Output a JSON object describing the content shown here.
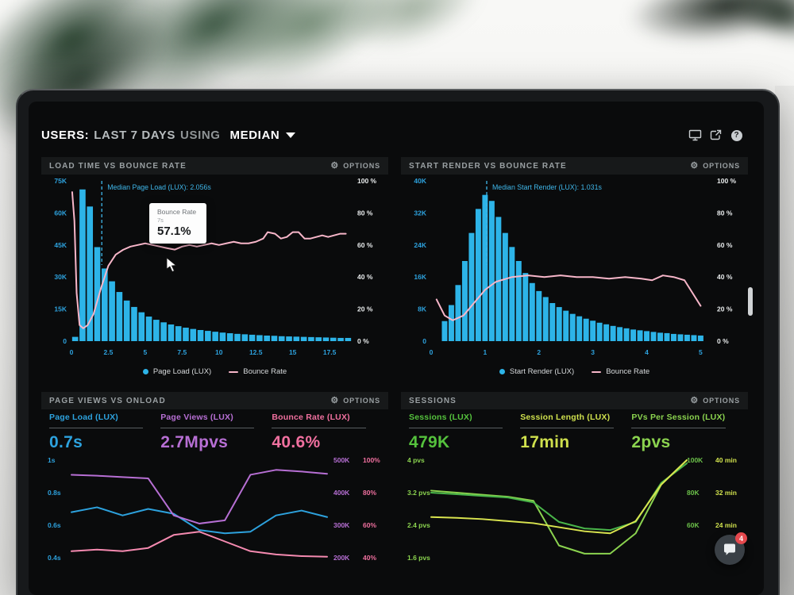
{
  "header": {
    "title_prefix": "USERS:",
    "title_range": "LAST 7 DAYS",
    "title_using": "USING",
    "title_metric": "MEDIAN"
  },
  "icons": {
    "gear": "⚙",
    "help": "?"
  },
  "colors": {
    "cyan": "#2db4e8",
    "pink": "#f7b6c9",
    "blue": "#2da2de",
    "purple": "#b76fd4",
    "rose": "#f0709f",
    "green": "#55c23d",
    "lime": "#cfe04d",
    "light_green": "#8bd34f",
    "axis_text": "#e8ebec",
    "annotation": "#3fb7ea"
  },
  "panels": {
    "p1": {
      "title": "LOAD TIME VS BOUNCE RATE",
      "options_label": "OPTIONS",
      "tooltip": {
        "title": "Bounce Rate",
        "sub": "7s",
        "value": "57.1%"
      },
      "legend": [
        {
          "label": "Page Load (LUX)"
        },
        {
          "label": "Bounce Rate"
        }
      ]
    },
    "p2": {
      "title": "START RENDER VS BOUNCE RATE",
      "options_label": "OPTIONS",
      "legend": [
        {
          "label": "Start Render (LUX)"
        },
        {
          "label": "Bounce Rate"
        }
      ]
    },
    "p3": {
      "title": "PAGE VIEWS VS ONLOAD",
      "options_label": "OPTIONS",
      "metrics": [
        {
          "label": "Page Load (LUX)",
          "value": "0.7s"
        },
        {
          "label": "Page Views (LUX)",
          "value": "2.7Mpvs"
        },
        {
          "label": "Bounce Rate (LUX)",
          "value": "40.6%"
        }
      ]
    },
    "p4": {
      "title": "SESSIONS",
      "options_label": "OPTIONS",
      "metrics": [
        {
          "label": "Sessions (LUX)",
          "value": "479K"
        },
        {
          "label": "Session Length (LUX)",
          "value": "17min"
        },
        {
          "label": "PVs Per Session (LUX)",
          "value": "2pvs"
        }
      ]
    }
  },
  "chat": {
    "badge": "4"
  },
  "chart_data": [
    {
      "type": "bar",
      "title": "LOAD TIME VS BOUNCE RATE",
      "x_domain": [
        0,
        19
      ],
      "x_ticks": {
        "values": [
          0,
          2.5,
          5,
          7.5,
          10,
          12.5,
          15,
          17.5
        ],
        "labels": [
          "0",
          "2.5",
          "5",
          "7.5",
          "10",
          "12.5",
          "15",
          "17.5"
        ]
      },
      "left_axis": {
        "max": 75000,
        "ticks": [
          "75K",
          "60K",
          "45K",
          "30K",
          "15K",
          "0"
        ],
        "color": "#2da2de"
      },
      "right_axis": {
        "ticks": [
          "100 %",
          "80 %",
          "60 %",
          "40 %",
          "20 %",
          "0 %"
        ],
        "color": "#e8ebec"
      },
      "bars": {
        "name": "Page Load (LUX)",
        "color": "#2db4e8",
        "x0": 0.25,
        "step": 0.5,
        "ymax": 75,
        "values": [
          2,
          71,
          63,
          44,
          34,
          28,
          23,
          19,
          16,
          13.5,
          11.5,
          10,
          8.8,
          7.8,
          7,
          6.3,
          5.7,
          5.2,
          4.8,
          4.4,
          4.0,
          3.7,
          3.4,
          3.2,
          3.0,
          2.8,
          2.6,
          2.5,
          2.3,
          2.2,
          2.1,
          2.0,
          1.9,
          1.8,
          1.7,
          1.6,
          1.5,
          1.5
        ]
      },
      "line": {
        "name": "Bounce Rate",
        "color": "#f7b6c9",
        "points": [
          [
            0.05,
            93
          ],
          [
            0.2,
            75
          ],
          [
            0.35,
            30
          ],
          [
            0.55,
            10
          ],
          [
            0.8,
            8
          ],
          [
            1.1,
            10
          ],
          [
            1.5,
            17
          ],
          [
            2.0,
            33
          ],
          [
            2.5,
            47
          ],
          [
            3.0,
            54
          ],
          [
            3.5,
            57
          ],
          [
            4.0,
            59
          ],
          [
            4.5,
            60
          ],
          [
            5.0,
            61
          ],
          [
            5.5,
            60
          ],
          [
            6.0,
            59
          ],
          [
            6.5,
            58
          ],
          [
            7.0,
            57.1
          ],
          [
            7.5,
            59
          ],
          [
            8.0,
            60
          ],
          [
            8.5,
            59
          ],
          [
            9.0,
            60
          ],
          [
            9.5,
            61
          ],
          [
            10.0,
            60
          ],
          [
            10.5,
            61
          ],
          [
            11.0,
            62
          ],
          [
            11.5,
            61
          ],
          [
            12.0,
            61
          ],
          [
            12.5,
            62
          ],
          [
            13.0,
            64
          ],
          [
            13.3,
            68
          ],
          [
            13.8,
            67
          ],
          [
            14.2,
            64
          ],
          [
            14.6,
            65
          ],
          [
            15.0,
            68
          ],
          [
            15.4,
            68
          ],
          [
            15.8,
            64
          ],
          [
            16.2,
            64
          ],
          [
            16.6,
            65
          ],
          [
            17.0,
            66
          ],
          [
            17.4,
            65
          ],
          [
            17.8,
            66
          ],
          [
            18.2,
            67
          ],
          [
            18.6,
            67
          ]
        ]
      },
      "median": {
        "x": 2.056,
        "label": "Median Page Load (LUX): 2.056s",
        "color": "#3fb7ea"
      }
    },
    {
      "type": "bar",
      "title": "START RENDER VS BOUNCE RATE",
      "x_domain": [
        0,
        5.2
      ],
      "x_ticks": {
        "values": [
          0,
          1,
          2,
          3,
          4,
          5
        ],
        "labels": [
          "0",
          "1",
          "2",
          "3",
          "4",
          "5"
        ]
      },
      "left_axis": {
        "max": 40000,
        "ticks": [
          "40K",
          "32K",
          "24K",
          "16K",
          "8K",
          "0"
        ],
        "color": "#2da2de"
      },
      "right_axis": {
        "ticks": [
          "100 %",
          "80 %",
          "60 %",
          "40 %",
          "20 %",
          "0 %"
        ],
        "color": "#e8ebec"
      },
      "bars": {
        "name": "Start Render (LUX)",
        "color": "#2db4e8",
        "x0": 0.25,
        "step": 0.125,
        "ymax": 40,
        "values": [
          5,
          9,
          14,
          20,
          27,
          33,
          36.5,
          35,
          31,
          27,
          23.5,
          20,
          17,
          14.5,
          12.5,
          11,
          9.5,
          8.5,
          7.6,
          6.8,
          6.2,
          5.6,
          5.1,
          4.6,
          4.2,
          3.8,
          3.5,
          3.2,
          2.9,
          2.7,
          2.5,
          2.3,
          2.1,
          2.0,
          1.8,
          1.7,
          1.6,
          1.5,
          1.4
        ]
      },
      "line": {
        "name": "Bounce Rate",
        "color": "#f7b6c9",
        "points": [
          [
            0.1,
            26
          ],
          [
            0.25,
            16
          ],
          [
            0.4,
            13
          ],
          [
            0.6,
            16
          ],
          [
            0.8,
            24
          ],
          [
            1.0,
            32
          ],
          [
            1.2,
            37
          ],
          [
            1.5,
            40
          ],
          [
            1.8,
            41
          ],
          [
            2.1,
            40
          ],
          [
            2.4,
            41
          ],
          [
            2.7,
            40
          ],
          [
            3.0,
            40
          ],
          [
            3.3,
            39
          ],
          [
            3.6,
            40
          ],
          [
            3.9,
            39
          ],
          [
            4.1,
            38
          ],
          [
            4.3,
            41
          ],
          [
            4.5,
            40
          ],
          [
            4.7,
            38
          ],
          [
            4.85,
            30
          ],
          [
            5.0,
            22
          ]
        ]
      },
      "median": {
        "x": 1.031,
        "label": "Median Start Render (LUX): 1.031s",
        "color": "#3fb7ea"
      }
    },
    {
      "type": "line",
      "title": "PAGE VIEWS VS ONLOAD",
      "left_ticks": {
        "labels": [
          "1s",
          "0.8s",
          "0.6s",
          "0.4s"
        ],
        "color": "#2da2de"
      },
      "right_cols": [
        {
          "labels": [
            "500K",
            "400K",
            "300K",
            "200K"
          ],
          "color": "#b76fd4",
          "x": 368
        },
        {
          "labels": [
            "100%",
            "80%",
            "60%",
            "40%"
          ],
          "color": "#f0709f",
          "x": 405
        }
      ],
      "series": [
        {
          "name": "Page Load (LUX)",
          "color": "#2da2de",
          "max": 1.0,
          "step": 0.2,
          "values": [
            0.68,
            0.71,
            0.66,
            0.7,
            0.67,
            0.57,
            0.55,
            0.56,
            0.66,
            0.69,
            0.65
          ]
        },
        {
          "name": "Page Views (LUX)",
          "color": "#b76fd4",
          "max": 500,
          "step": 100,
          "values": [
            455,
            452,
            448,
            444,
            330,
            305,
            315,
            455,
            470,
            465,
            458
          ]
        },
        {
          "name": "Bounce Rate (LUX)",
          "color": "#f58ab0",
          "max": 100,
          "step": 20,
          "values": [
            44,
            45,
            44,
            46,
            54,
            56,
            50,
            44,
            42,
            41,
            40.6
          ]
        }
      ]
    },
    {
      "type": "line",
      "title": "SESSIONS",
      "left_ticks": {
        "labels": [
          "4 pvs",
          "3.2 pvs",
          "2.4 pvs",
          "1.6 pvs"
        ],
        "color": "#8bd34f"
      },
      "right_cols": [
        {
          "labels": [
            "100K",
            "80K",
            "60K"
          ],
          "color": "#6cc24a",
          "x": 360
        },
        {
          "labels": [
            "40 min",
            "32 min",
            "24 min"
          ],
          "color": "#cfe04d",
          "x": 396
        }
      ],
      "series": [
        {
          "name": "PVs Per Session (LUX)",
          "color": "#8bd34f",
          "max": 4,
          "step": 0.8,
          "values": [
            3.25,
            3.2,
            3.15,
            3.1,
            3.0,
            1.9,
            1.7,
            1.7,
            2.2,
            3.4,
            4.0
          ]
        },
        {
          "name": "Sessions (LUX)",
          "color": "#49b54a",
          "max": 100,
          "step": 20,
          "values": [
            80,
            79,
            78,
            77,
            74,
            62,
            58,
            57,
            62,
            86,
            98
          ]
        },
        {
          "name": "Session Length (LUX)",
          "color": "#d9e44f",
          "max": 40,
          "step": 8,
          "values": [
            26,
            25.8,
            25.5,
            25,
            24.5,
            23.5,
            22.5,
            22,
            25,
            34,
            40
          ]
        }
      ]
    }
  ]
}
